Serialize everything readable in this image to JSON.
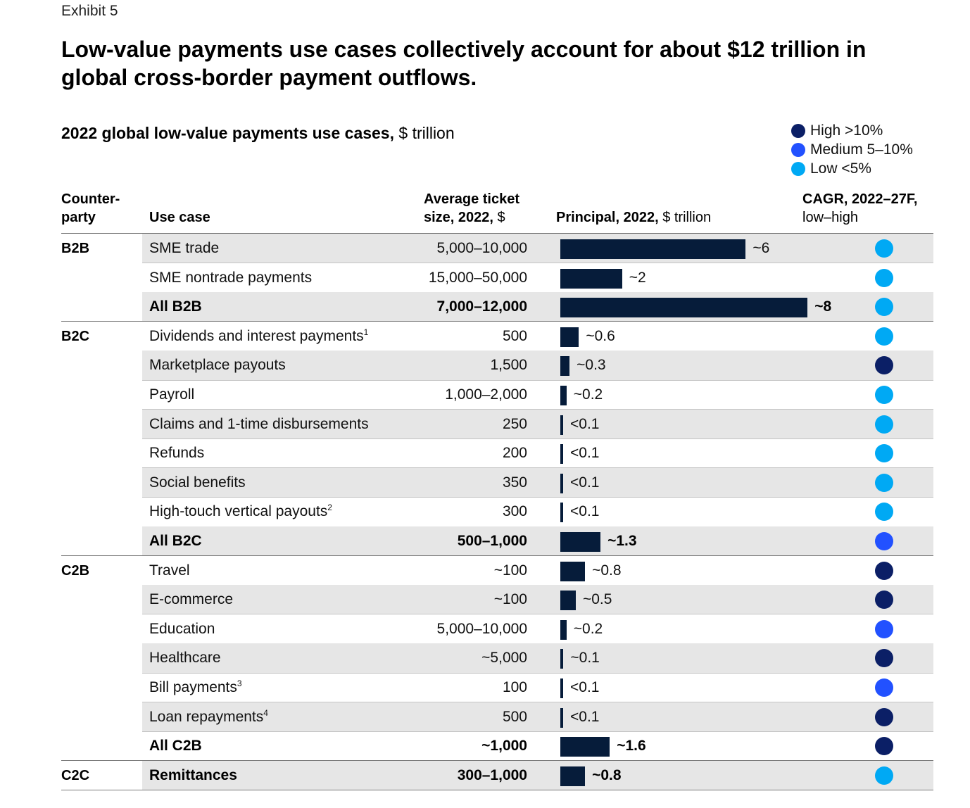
{
  "exhibit": "Exhibit 5",
  "title": "Low-value payments use cases collectively account for about $12 trillion in global cross-border payment outflows.",
  "subtitle_bold": "2022 global low-value payments use cases,",
  "subtitle_unit": " $ trillion",
  "colors": {
    "bar": "#061c3a",
    "high": "#0b1f66",
    "medium": "#2251ff",
    "low": "#00a9f4",
    "shade": "#e6e6e6"
  },
  "legend": [
    {
      "key": "high",
      "label": "High >10%"
    },
    {
      "key": "medium",
      "label": "Medium 5–10%"
    },
    {
      "key": "low",
      "label": "Low <5%"
    }
  ],
  "headers": {
    "counterparty": "Counter-\nparty",
    "use_case": "Use case",
    "ticket_l1": "Average ticket",
    "ticket_l2_bold": "size, 2022,",
    "ticket_l2_unit": " $",
    "principal_bold": "Principal, 2022,",
    "principal_unit": " $ trillion",
    "cagr_l1": "CAGR, 2022–27F,",
    "cagr_l2": "low–high"
  },
  "chart_data": {
    "type": "bar",
    "title": "2022 global low-value payments use cases, $ trillion",
    "value_unit": "$ trillion",
    "rows": [
      {
        "counterparty": "B2B",
        "use_case": "SME trade",
        "ticket": "5,000–10,000",
        "value": 6,
        "label": "~6",
        "cagr": "low"
      },
      {
        "counterparty": "B2B",
        "use_case": "SME nontrade payments",
        "ticket": "15,000–50,000",
        "value": 2,
        "label": "~2",
        "cagr": "low"
      },
      {
        "counterparty": "B2B",
        "use_case": "All B2B",
        "ticket": "7,000–12,000",
        "value": 8,
        "label": "~8",
        "cagr": "low",
        "total": true
      },
      {
        "counterparty": "B2C",
        "use_case": "Dividends and interest payments",
        "sup": "1",
        "ticket": "500",
        "value": 0.6,
        "label": "~0.6",
        "cagr": "low"
      },
      {
        "counterparty": "B2C",
        "use_case": "Marketplace payouts",
        "ticket": "1,500",
        "value": 0.3,
        "label": "~0.3",
        "cagr": "high"
      },
      {
        "counterparty": "B2C",
        "use_case": "Payroll",
        "ticket": "1,000–2,000",
        "value": 0.2,
        "label": "~0.2",
        "cagr": "low"
      },
      {
        "counterparty": "B2C",
        "use_case": "Claims and 1-time disbursements",
        "ticket": "250",
        "value": 0.05,
        "label": "<0.1",
        "cagr": "low"
      },
      {
        "counterparty": "B2C",
        "use_case": "Refunds",
        "ticket": "200",
        "value": 0.05,
        "label": "<0.1",
        "cagr": "low"
      },
      {
        "counterparty": "B2C",
        "use_case": "Social benefits",
        "ticket": "350",
        "value": 0.05,
        "label": "<0.1",
        "cagr": "low"
      },
      {
        "counterparty": "B2C",
        "use_case": "High-touch vertical payouts",
        "sup": "2",
        "ticket": "300",
        "value": 0.05,
        "label": "<0.1",
        "cagr": "low"
      },
      {
        "counterparty": "B2C",
        "use_case": "All B2C",
        "ticket": "500–1,000",
        "value": 1.3,
        "label": "~1.3",
        "cagr": "medium",
        "total": true
      },
      {
        "counterparty": "C2B",
        "use_case": "Travel",
        "ticket": "~100",
        "value": 0.8,
        "label": "~0.8",
        "cagr": "high"
      },
      {
        "counterparty": "C2B",
        "use_case": "E-commerce",
        "ticket": "~100",
        "value": 0.5,
        "label": "~0.5",
        "cagr": "high"
      },
      {
        "counterparty": "C2B",
        "use_case": "Education",
        "ticket": "5,000–10,000",
        "value": 0.2,
        "label": "~0.2",
        "cagr": "medium"
      },
      {
        "counterparty": "C2B",
        "use_case": "Healthcare",
        "ticket": "~5,000",
        "value": 0.1,
        "label": "~0.1",
        "cagr": "high"
      },
      {
        "counterparty": "C2B",
        "use_case": "Bill payments",
        "sup": "3",
        "ticket": "100",
        "value": 0.05,
        "label": "<0.1",
        "cagr": "medium"
      },
      {
        "counterparty": "C2B",
        "use_case": "Loan repayments",
        "sup": "4",
        "ticket": "500",
        "value": 0.05,
        "label": "<0.1",
        "cagr": "high"
      },
      {
        "counterparty": "C2B",
        "use_case": "All C2B",
        "ticket": "~1,000",
        "value": 1.6,
        "label": "~1.6",
        "cagr": "high",
        "total": true
      },
      {
        "counterparty": "C2C",
        "use_case": "Remittances",
        "ticket": "300–1,000",
        "value": 0.8,
        "label": "~0.8",
        "cagr": "low",
        "total": true
      }
    ]
  }
}
